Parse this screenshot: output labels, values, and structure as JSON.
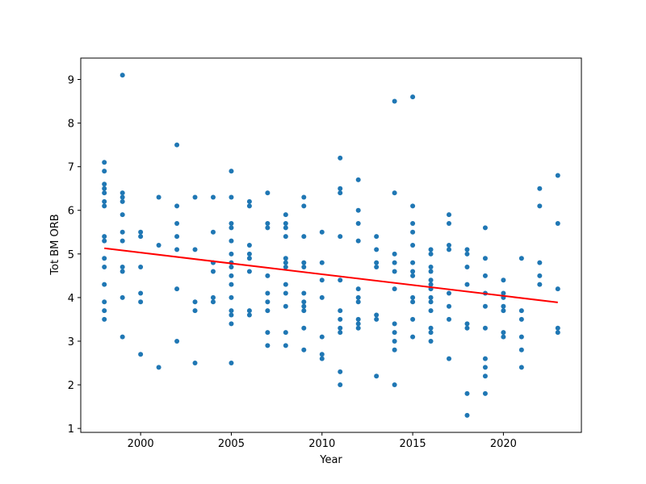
{
  "chart_data": {
    "type": "scatter",
    "title": "",
    "xlabel": "Year",
    "ylabel": "Tot BM ORB",
    "xlim": [
      1996.7,
      2024.3
    ],
    "ylim": [
      0.91,
      9.49
    ],
    "xticks": [
      2000,
      2005,
      2010,
      2015,
      2020
    ],
    "yticks": [
      1,
      2,
      3,
      4,
      5,
      6,
      7,
      8,
      9
    ],
    "grid": false,
    "legend": "none",
    "point_color": "#1f77b4",
    "trend_color": "#ff0000",
    "trend_line": {
      "x": [
        1998,
        2023
      ],
      "y": [
        5.13,
        3.89
      ]
    },
    "points": [
      {
        "x": 1998,
        "y": 7.1
      },
      {
        "x": 1998,
        "y": 6.9
      },
      {
        "x": 1998,
        "y": 6.6
      },
      {
        "x": 1998,
        "y": 6.5
      },
      {
        "x": 1998,
        "y": 6.4
      },
      {
        "x": 1998,
        "y": 6.2
      },
      {
        "x": 1998,
        "y": 6.1
      },
      {
        "x": 1998,
        "y": 5.4
      },
      {
        "x": 1998,
        "y": 5.3
      },
      {
        "x": 1998,
        "y": 4.9
      },
      {
        "x": 1998,
        "y": 4.7
      },
      {
        "x": 1998,
        "y": 4.3
      },
      {
        "x": 1998,
        "y": 3.9
      },
      {
        "x": 1998,
        "y": 3.7
      },
      {
        "x": 1998,
        "y": 3.5
      },
      {
        "x": 1999,
        "y": 9.1
      },
      {
        "x": 1999,
        "y": 6.4
      },
      {
        "x": 1999,
        "y": 6.3
      },
      {
        "x": 1999,
        "y": 6.2
      },
      {
        "x": 1999,
        "y": 5.9
      },
      {
        "x": 1999,
        "y": 5.5
      },
      {
        "x": 1999,
        "y": 5.3
      },
      {
        "x": 1999,
        "y": 4.7
      },
      {
        "x": 1999,
        "y": 4.6
      },
      {
        "x": 1999,
        "y": 4.0
      },
      {
        "x": 1999,
        "y": 3.1
      },
      {
        "x": 2000,
        "y": 5.5
      },
      {
        "x": 2000,
        "y": 5.4
      },
      {
        "x": 2000,
        "y": 4.7
      },
      {
        "x": 2000,
        "y": 4.1
      },
      {
        "x": 2000,
        "y": 3.9
      },
      {
        "x": 2000,
        "y": 2.7
      },
      {
        "x": 2001,
        "y": 6.3
      },
      {
        "x": 2001,
        "y": 5.2
      },
      {
        "x": 2001,
        "y": 2.4
      },
      {
        "x": 2002,
        "y": 7.5
      },
      {
        "x": 2002,
        "y": 6.1
      },
      {
        "x": 2002,
        "y": 5.7
      },
      {
        "x": 2002,
        "y": 5.4
      },
      {
        "x": 2002,
        "y": 5.1
      },
      {
        "x": 2002,
        "y": 4.2
      },
      {
        "x": 2002,
        "y": 3.0
      },
      {
        "x": 2003,
        "y": 6.3
      },
      {
        "x": 2003,
        "y": 5.1
      },
      {
        "x": 2003,
        "y": 3.9
      },
      {
        "x": 2003,
        "y": 3.7
      },
      {
        "x": 2003,
        "y": 2.5
      },
      {
        "x": 2004,
        "y": 6.3
      },
      {
        "x": 2004,
        "y": 5.5
      },
      {
        "x": 2004,
        "y": 4.8
      },
      {
        "x": 2004,
        "y": 4.6
      },
      {
        "x": 2004,
        "y": 4.0
      },
      {
        "x": 2004,
        "y": 3.9
      },
      {
        "x": 2005,
        "y": 6.9
      },
      {
        "x": 2005,
        "y": 6.3
      },
      {
        "x": 2005,
        "y": 5.7
      },
      {
        "x": 2005,
        "y": 5.6
      },
      {
        "x": 2005,
        "y": 5.3
      },
      {
        "x": 2005,
        "y": 5.0
      },
      {
        "x": 2005,
        "y": 4.8
      },
      {
        "x": 2005,
        "y": 4.7
      },
      {
        "x": 2005,
        "y": 4.5
      },
      {
        "x": 2005,
        "y": 4.3
      },
      {
        "x": 2005,
        "y": 4.0
      },
      {
        "x": 2005,
        "y": 3.7
      },
      {
        "x": 2005,
        "y": 3.6
      },
      {
        "x": 2005,
        "y": 3.4
      },
      {
        "x": 2005,
        "y": 2.5
      },
      {
        "x": 2006,
        "y": 6.2
      },
      {
        "x": 2006,
        "y": 6.1
      },
      {
        "x": 2006,
        "y": 5.2
      },
      {
        "x": 2006,
        "y": 5.0
      },
      {
        "x": 2006,
        "y": 4.9
      },
      {
        "x": 2006,
        "y": 4.6
      },
      {
        "x": 2006,
        "y": 3.7
      },
      {
        "x": 2006,
        "y": 3.6
      },
      {
        "x": 2007,
        "y": 6.4
      },
      {
        "x": 2007,
        "y": 5.7
      },
      {
        "x": 2007,
        "y": 5.6
      },
      {
        "x": 2007,
        "y": 4.5
      },
      {
        "x": 2007,
        "y": 4.1
      },
      {
        "x": 2007,
        "y": 3.9
      },
      {
        "x": 2007,
        "y": 3.7
      },
      {
        "x": 2007,
        "y": 3.2
      },
      {
        "x": 2007,
        "y": 2.9
      },
      {
        "x": 2008,
        "y": 5.9
      },
      {
        "x": 2008,
        "y": 5.7
      },
      {
        "x": 2008,
        "y": 5.6
      },
      {
        "x": 2008,
        "y": 5.4
      },
      {
        "x": 2008,
        "y": 4.9
      },
      {
        "x": 2008,
        "y": 4.8
      },
      {
        "x": 2008,
        "y": 4.7
      },
      {
        "x": 2008,
        "y": 4.3
      },
      {
        "x": 2008,
        "y": 4.1
      },
      {
        "x": 2008,
        "y": 3.8
      },
      {
        "x": 2008,
        "y": 3.2
      },
      {
        "x": 2008,
        "y": 2.9
      },
      {
        "x": 2009,
        "y": 6.3
      },
      {
        "x": 2009,
        "y": 6.1
      },
      {
        "x": 2009,
        "y": 5.4
      },
      {
        "x": 2009,
        "y": 4.8
      },
      {
        "x": 2009,
        "y": 4.7
      },
      {
        "x": 2009,
        "y": 4.1
      },
      {
        "x": 2009,
        "y": 3.9
      },
      {
        "x": 2009,
        "y": 3.8
      },
      {
        "x": 2009,
        "y": 3.7
      },
      {
        "x": 2009,
        "y": 3.3
      },
      {
        "x": 2009,
        "y": 2.8
      },
      {
        "x": 2010,
        "y": 5.5
      },
      {
        "x": 2010,
        "y": 4.8
      },
      {
        "x": 2010,
        "y": 4.4
      },
      {
        "x": 2010,
        "y": 4.0
      },
      {
        "x": 2010,
        "y": 3.1
      },
      {
        "x": 2010,
        "y": 2.7
      },
      {
        "x": 2010,
        "y": 2.6
      },
      {
        "x": 2011,
        "y": 7.2
      },
      {
        "x": 2011,
        "y": 6.5
      },
      {
        "x": 2011,
        "y": 6.4
      },
      {
        "x": 2011,
        "y": 5.4
      },
      {
        "x": 2011,
        "y": 4.4
      },
      {
        "x": 2011,
        "y": 3.7
      },
      {
        "x": 2011,
        "y": 3.5
      },
      {
        "x": 2011,
        "y": 3.3
      },
      {
        "x": 2011,
        "y": 3.2
      },
      {
        "x": 2011,
        "y": 2.3
      },
      {
        "x": 2011,
        "y": 2.0
      },
      {
        "x": 2012,
        "y": 6.7
      },
      {
        "x": 2012,
        "y": 6.0
      },
      {
        "x": 2012,
        "y": 5.7
      },
      {
        "x": 2012,
        "y": 5.3
      },
      {
        "x": 2012,
        "y": 4.2
      },
      {
        "x": 2012,
        "y": 4.0
      },
      {
        "x": 2012,
        "y": 3.9
      },
      {
        "x": 2012,
        "y": 3.5
      },
      {
        "x": 2012,
        "y": 3.4
      },
      {
        "x": 2012,
        "y": 3.3
      },
      {
        "x": 2013,
        "y": 5.4
      },
      {
        "x": 2013,
        "y": 5.1
      },
      {
        "x": 2013,
        "y": 4.8
      },
      {
        "x": 2013,
        "y": 4.7
      },
      {
        "x": 2013,
        "y": 3.6
      },
      {
        "x": 2013,
        "y": 3.5
      },
      {
        "x": 2013,
        "y": 2.2
      },
      {
        "x": 2014,
        "y": 8.5
      },
      {
        "x": 2014,
        "y": 6.4
      },
      {
        "x": 2014,
        "y": 5.0
      },
      {
        "x": 2014,
        "y": 4.8
      },
      {
        "x": 2014,
        "y": 4.6
      },
      {
        "x": 2014,
        "y": 4.2
      },
      {
        "x": 2014,
        "y": 3.4
      },
      {
        "x": 2014,
        "y": 3.2
      },
      {
        "x": 2014,
        "y": 3.0
      },
      {
        "x": 2014,
        "y": 2.8
      },
      {
        "x": 2014,
        "y": 2.0
      },
      {
        "x": 2015,
        "y": 8.6
      },
      {
        "x": 2015,
        "y": 6.1
      },
      {
        "x": 2015,
        "y": 5.7
      },
      {
        "x": 2015,
        "y": 5.5
      },
      {
        "x": 2015,
        "y": 5.2
      },
      {
        "x": 2015,
        "y": 4.8
      },
      {
        "x": 2015,
        "y": 4.6
      },
      {
        "x": 2015,
        "y": 4.5
      },
      {
        "x": 2015,
        "y": 4.0
      },
      {
        "x": 2015,
        "y": 3.9
      },
      {
        "x": 2015,
        "y": 3.5
      },
      {
        "x": 2015,
        "y": 3.1
      },
      {
        "x": 2016,
        "y": 5.1
      },
      {
        "x": 2016,
        "y": 5.0
      },
      {
        "x": 2016,
        "y": 4.7
      },
      {
        "x": 2016,
        "y": 4.6
      },
      {
        "x": 2016,
        "y": 4.4
      },
      {
        "x": 2016,
        "y": 4.3
      },
      {
        "x": 2016,
        "y": 4.2
      },
      {
        "x": 2016,
        "y": 4.0
      },
      {
        "x": 2016,
        "y": 3.9
      },
      {
        "x": 2016,
        "y": 3.7
      },
      {
        "x": 2016,
        "y": 3.3
      },
      {
        "x": 2016,
        "y": 3.2
      },
      {
        "x": 2016,
        "y": 3.0
      },
      {
        "x": 2017,
        "y": 5.9
      },
      {
        "x": 2017,
        "y": 5.7
      },
      {
        "x": 2017,
        "y": 5.2
      },
      {
        "x": 2017,
        "y": 5.1
      },
      {
        "x": 2017,
        "y": 4.1
      },
      {
        "x": 2017,
        "y": 3.8
      },
      {
        "x": 2017,
        "y": 3.5
      },
      {
        "x": 2017,
        "y": 2.6
      },
      {
        "x": 2018,
        "y": 5.1
      },
      {
        "x": 2018,
        "y": 5.0
      },
      {
        "x": 2018,
        "y": 4.7
      },
      {
        "x": 2018,
        "y": 4.3
      },
      {
        "x": 2018,
        "y": 3.4
      },
      {
        "x": 2018,
        "y": 3.3
      },
      {
        "x": 2018,
        "y": 1.8
      },
      {
        "x": 2018,
        "y": 1.3
      },
      {
        "x": 2019,
        "y": 5.6
      },
      {
        "x": 2019,
        "y": 4.9
      },
      {
        "x": 2019,
        "y": 4.5
      },
      {
        "x": 2019,
        "y": 4.1
      },
      {
        "x": 2019,
        "y": 3.8
      },
      {
        "x": 2019,
        "y": 3.3
      },
      {
        "x": 2019,
        "y": 2.6
      },
      {
        "x": 2019,
        "y": 2.4
      },
      {
        "x": 2019,
        "y": 2.2
      },
      {
        "x": 2019,
        "y": 1.8
      },
      {
        "x": 2020,
        "y": 4.4
      },
      {
        "x": 2020,
        "y": 4.1
      },
      {
        "x": 2020,
        "y": 4.0
      },
      {
        "x": 2020,
        "y": 3.8
      },
      {
        "x": 2020,
        "y": 3.7
      },
      {
        "x": 2020,
        "y": 3.2
      },
      {
        "x": 2020,
        "y": 3.1
      },
      {
        "x": 2021,
        "y": 4.9
      },
      {
        "x": 2021,
        "y": 3.7
      },
      {
        "x": 2021,
        "y": 3.5
      },
      {
        "x": 2021,
        "y": 3.1
      },
      {
        "x": 2021,
        "y": 2.8
      },
      {
        "x": 2021,
        "y": 2.4
      },
      {
        "x": 2022,
        "y": 6.5
      },
      {
        "x": 2022,
        "y": 6.1
      },
      {
        "x": 2022,
        "y": 4.8
      },
      {
        "x": 2022,
        "y": 4.5
      },
      {
        "x": 2022,
        "y": 4.3
      },
      {
        "x": 2023,
        "y": 6.8
      },
      {
        "x": 2023,
        "y": 5.7
      },
      {
        "x": 2023,
        "y": 4.2
      },
      {
        "x": 2023,
        "y": 3.3
      },
      {
        "x": 2023,
        "y": 3.2
      }
    ]
  }
}
